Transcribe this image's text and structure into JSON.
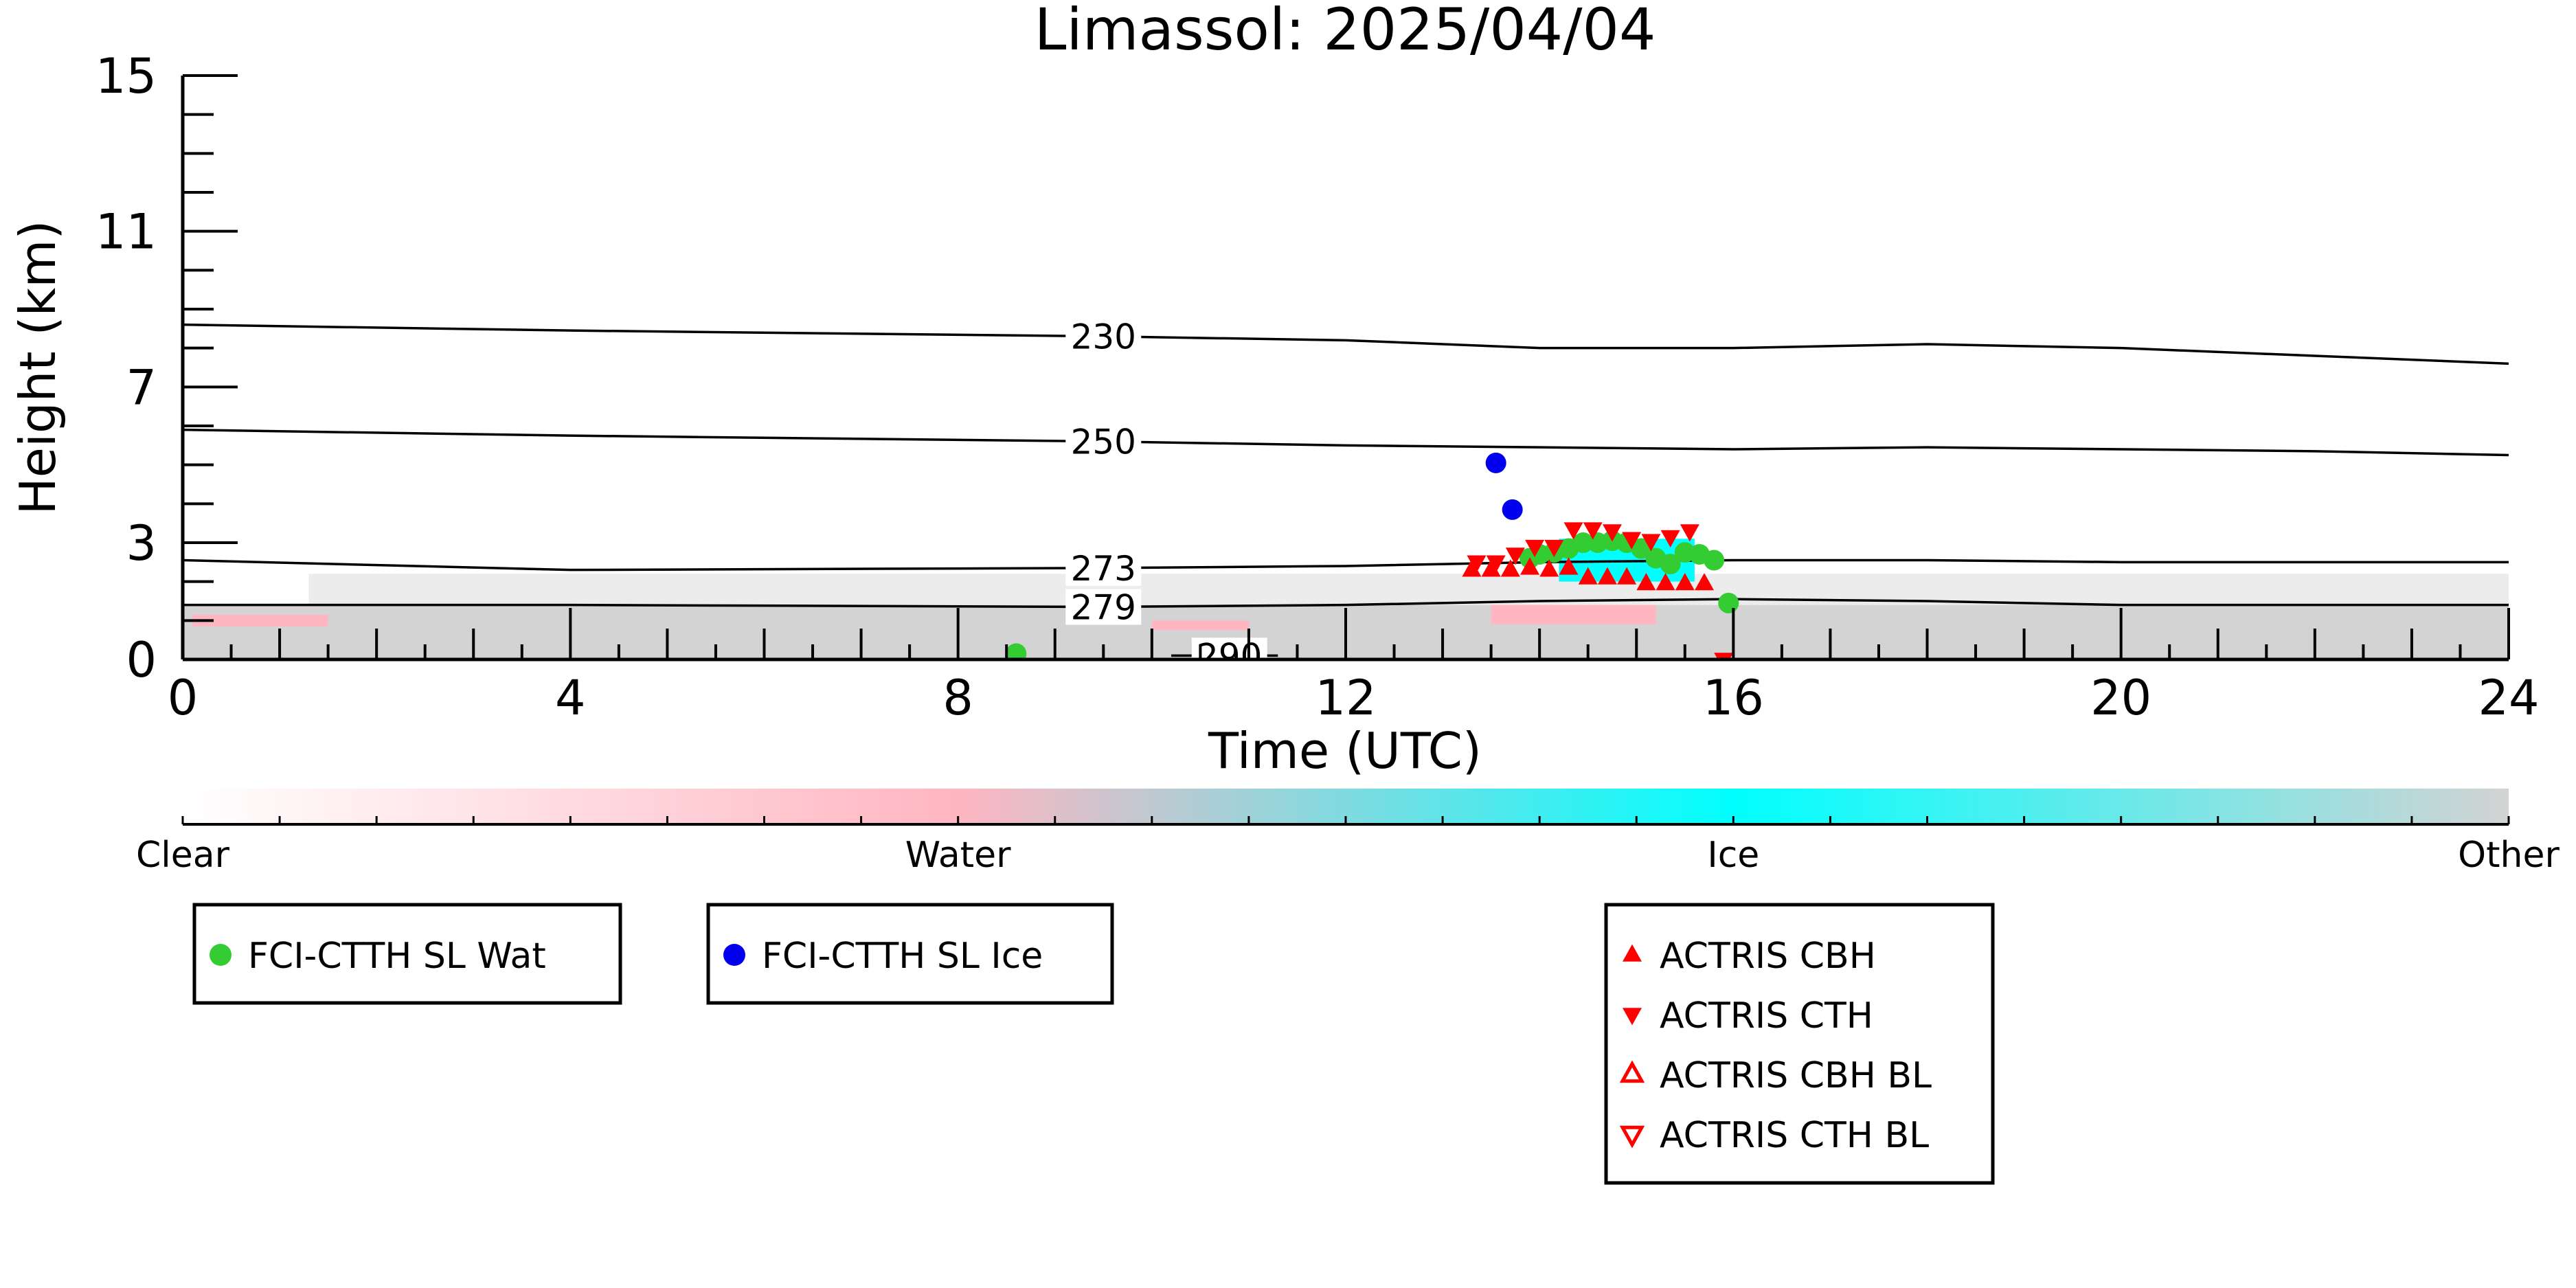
{
  "chart_data": {
    "type": "scatter",
    "title": "Limassol: 2025/04/04",
    "xlabel": "Time (UTC)",
    "ylabel": "Height (km)",
    "xlim": [
      0,
      24
    ],
    "ylim": [
      0,
      15
    ],
    "x_ticks": [
      0,
      4,
      8,
      12,
      16,
      20,
      24
    ],
    "x_tick_labels": [
      "0",
      "4",
      "8",
      "12",
      "16",
      "20",
      "24"
    ],
    "y_ticks": [
      0,
      3,
      7,
      11,
      15
    ],
    "y_tick_labels": [
      "0",
      "3",
      "7",
      "11",
      "15"
    ],
    "grid": false,
    "temperature_contours": [
      {
        "label": "230",
        "label_x": 9.5,
        "x": [
          0,
          4,
          9.5,
          12,
          14,
          16,
          18,
          20,
          22,
          24
        ],
        "y": [
          8.6,
          8.45,
          8.3,
          8.2,
          8.0,
          8.0,
          8.1,
          8.0,
          7.8,
          7.6
        ]
      },
      {
        "label": "250",
        "label_x": 9.5,
        "x": [
          0,
          4,
          9.5,
          12,
          14,
          16,
          18,
          20,
          22,
          24
        ],
        "y": [
          5.9,
          5.75,
          5.6,
          5.5,
          5.45,
          5.4,
          5.45,
          5.4,
          5.35,
          5.25
        ]
      },
      {
        "label": "273",
        "label_x": 9.5,
        "x": [
          0,
          4,
          9.5,
          12,
          14,
          16,
          18,
          20,
          22,
          24
        ],
        "y": [
          2.55,
          2.3,
          2.35,
          2.4,
          2.5,
          2.55,
          2.55,
          2.5,
          2.5,
          2.5
        ]
      },
      {
        "label": "279",
        "label_x": 9.5,
        "x": [
          0,
          4,
          9.5,
          12,
          14,
          16,
          18,
          20,
          22,
          24
        ],
        "y": [
          1.4,
          1.4,
          1.35,
          1.4,
          1.5,
          1.55,
          1.5,
          1.4,
          1.4,
          1.4
        ]
      },
      {
        "label": "290",
        "label_x": 10.8,
        "x": [
          10.2,
          10.8,
          11.3
        ],
        "y": [
          0.1,
          0.1,
          0.1
        ]
      }
    ],
    "series": [
      {
        "name": "FCI-CTTH SL Wat",
        "marker": "circle",
        "color": "#33cc33",
        "x": [
          8.6,
          13.9,
          14.0,
          14.15,
          14.3,
          14.45,
          14.6,
          14.75,
          14.9,
          15.05,
          15.2,
          15.35,
          15.5,
          15.65,
          15.8,
          15.95
        ],
        "y": [
          0.15,
          2.6,
          2.7,
          2.75,
          2.85,
          3.0,
          3.0,
          3.05,
          3.0,
          2.85,
          2.6,
          2.45,
          2.75,
          2.7,
          2.55,
          1.45
        ]
      },
      {
        "name": "FCI-CTTH SL Ice",
        "marker": "circle",
        "color": "#0000ee",
        "x": [
          13.55,
          13.72
        ],
        "y": [
          5.05,
          3.85
        ]
      },
      {
        "name": "ACTRIS CBH",
        "marker": "triangle-up",
        "color": "#ff0000",
        "x": [
          13.3,
          13.5,
          13.7,
          13.9,
          14.1,
          14.3,
          14.5,
          14.7,
          14.9,
          15.1,
          15.3,
          15.5,
          15.7
        ],
        "y": [
          2.3,
          2.3,
          2.3,
          2.35,
          2.3,
          2.35,
          2.1,
          2.1,
          2.1,
          1.95,
          1.95,
          1.95,
          1.95
        ]
      },
      {
        "name": "ACTRIS CTH",
        "marker": "triangle-down",
        "color": "#ff0000",
        "x": [
          13.35,
          13.55,
          13.75,
          13.95,
          14.15,
          14.35,
          14.55,
          14.75,
          14.95,
          15.15,
          15.35,
          15.55,
          15.9
        ],
        "y": [
          2.5,
          2.5,
          2.7,
          2.9,
          2.9,
          3.35,
          3.35,
          3.3,
          3.1,
          3.05,
          3.15,
          3.3,
          0.0
        ]
      },
      {
        "name": "ACTRIS CBH BL",
        "marker": "triangle-up-open",
        "color": "#ff0000",
        "x": [],
        "y": []
      },
      {
        "name": "ACTRIS CTH BL",
        "marker": "triangle-down-open",
        "color": "#ff0000",
        "x": [],
        "y": []
      }
    ],
    "background_classification": {
      "categories": [
        "Clear",
        "Water",
        "Ice",
        "Other"
      ],
      "colors": {
        "Clear": "#ffffff",
        "Water": "#ffb6c1",
        "Ice": "#00ffff",
        "Other": "#d3d3d3"
      },
      "other_band": {
        "x": [
          0,
          24
        ],
        "y": [
          0,
          1.4
        ]
      },
      "light_other_band": {
        "x": [
          1.3,
          24
        ],
        "y": [
          1.4,
          2.2
        ]
      },
      "water_patches": [
        {
          "x": [
            0.1,
            1.5
          ],
          "y": [
            0.85,
            1.15
          ]
        },
        {
          "x": [
            13.5,
            15.2
          ],
          "y": [
            0.9,
            1.4
          ]
        },
        {
          "x": [
            10.0,
            11.0
          ],
          "y": [
            0.75,
            1.0
          ]
        }
      ],
      "ice_patches": [
        {
          "x": [
            14.2,
            15.6
          ],
          "y": [
            2.0,
            3.1
          ]
        }
      ]
    },
    "colorbar": {
      "labels": [
        "Clear",
        "Water",
        "Ice",
        "Other"
      ],
      "gradient": [
        "#ffffff",
        "#ffb6c1",
        "#00ffff",
        "#d3d3d3"
      ],
      "minor_ticks": 24
    },
    "legend": {
      "boxes": [
        {
          "entries": [
            "FCI-CTTH SL Wat"
          ]
        },
        {
          "entries": [
            "FCI-CTTH SL Ice"
          ]
        },
        {
          "entries": [
            "ACTRIS CBH",
            "ACTRIS CTH",
            "ACTRIS CBH BL",
            "ACTRIS CTH BL"
          ]
        }
      ]
    }
  }
}
